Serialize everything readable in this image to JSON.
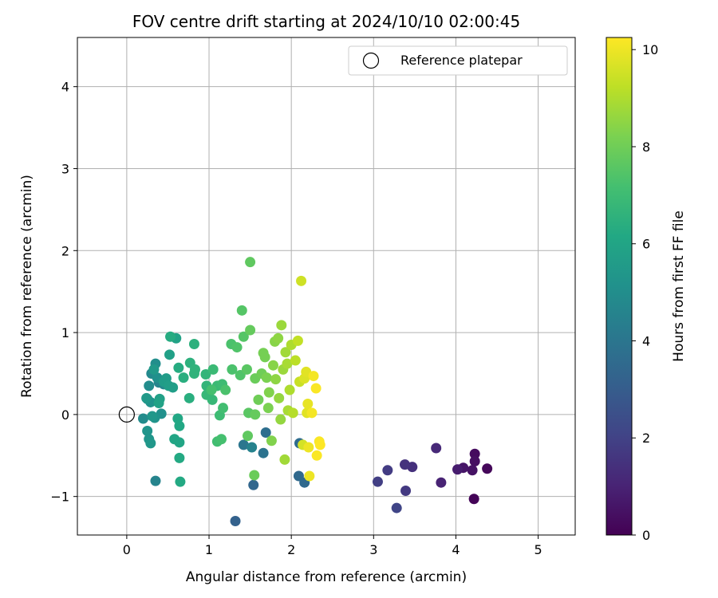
{
  "chart_data": {
    "type": "scatter",
    "title": "FOV centre drift starting at 2024/10/10 02:00:45",
    "xlabel": "Angular distance from reference (arcmin)",
    "ylabel": "Rotation from reference (arcmin)",
    "xlim": [
      -0.6,
      5.45
    ],
    "ylim": [
      -1.47,
      4.6
    ],
    "xticks": [
      0,
      1,
      2,
      3,
      4,
      5
    ],
    "yticks": [
      -1,
      0,
      1,
      2,
      3,
      4
    ],
    "grid": true,
    "legend": {
      "location": "top-right",
      "entries": [
        "Reference platepar"
      ]
    },
    "reference_point": {
      "x": 0.0,
      "y": 0.0,
      "marker": "open-circle",
      "label": "Reference platepar"
    },
    "colorbar": {
      "label": "Hours from first FF file",
      "range": [
        0,
        10.25
      ],
      "ticks": [
        0,
        2,
        4,
        6,
        8,
        10
      ],
      "colormap": "viridis"
    },
    "points": [
      {
        "x": 4.22,
        "y": -1.03,
        "c": 0.1
      },
      {
        "x": 4.38,
        "y": -0.66,
        "c": 0.2
      },
      {
        "x": 4.23,
        "y": -0.48,
        "c": 0.3
      },
      {
        "x": 4.23,
        "y": -0.57,
        "c": 0.4
      },
      {
        "x": 4.2,
        "y": -0.68,
        "c": 0.5
      },
      {
        "x": 4.09,
        "y": -0.65,
        "c": 0.6
      },
      {
        "x": 4.02,
        "y": -0.67,
        "c": 0.8
      },
      {
        "x": 3.82,
        "y": -0.83,
        "c": 1.0
      },
      {
        "x": 3.76,
        "y": -0.41,
        "c": 1.2
      },
      {
        "x": 3.47,
        "y": -0.64,
        "c": 1.4
      },
      {
        "x": 3.38,
        "y": -0.61,
        "c": 1.5
      },
      {
        "x": 3.39,
        "y": -0.93,
        "c": 1.7
      },
      {
        "x": 3.17,
        "y": -0.68,
        "c": 1.8
      },
      {
        "x": 3.05,
        "y": -0.82,
        "c": 1.9
      },
      {
        "x": 3.28,
        "y": -1.14,
        "c": 2.1
      },
      {
        "x": 1.32,
        "y": -1.3,
        "c": 3.2
      },
      {
        "x": 1.54,
        "y": -0.86,
        "c": 3.4
      },
      {
        "x": 2.09,
        "y": -0.75,
        "c": 3.5
      },
      {
        "x": 2.16,
        "y": -0.83,
        "c": 3.5
      },
      {
        "x": 2.1,
        "y": -0.35,
        "c": 3.6
      },
      {
        "x": 1.69,
        "y": -0.22,
        "c": 3.7
      },
      {
        "x": 1.66,
        "y": -0.47,
        "c": 3.9
      },
      {
        "x": 1.42,
        "y": -0.37,
        "c": 4.0
      },
      {
        "x": 1.52,
        "y": -0.4,
        "c": 4.5
      },
      {
        "x": 0.35,
        "y": -0.81,
        "c": 4.6
      },
      {
        "x": 0.39,
        "y": 0.39,
        "c": 4.6
      },
      {
        "x": 0.45,
        "y": 0.37,
        "c": 4.7
      },
      {
        "x": 0.3,
        "y": 0.5,
        "c": 4.8
      },
      {
        "x": 0.27,
        "y": 0.35,
        "c": 4.9
      },
      {
        "x": 0.2,
        "y": -0.05,
        "c": 4.9
      },
      {
        "x": 0.25,
        "y": 0.19,
        "c": 5.0
      },
      {
        "x": 0.35,
        "y": 0.62,
        "c": 5.0
      },
      {
        "x": 0.37,
        "y": 0.45,
        "c": 5.1
      },
      {
        "x": 0.42,
        "y": 0.01,
        "c": 5.1
      },
      {
        "x": 0.34,
        "y": -0.04,
        "c": 5.2
      },
      {
        "x": 0.29,
        "y": 0.15,
        "c": 5.2
      },
      {
        "x": 0.25,
        "y": -0.2,
        "c": 5.3
      },
      {
        "x": 0.27,
        "y": -0.3,
        "c": 5.3
      },
      {
        "x": 0.29,
        "y": -0.35,
        "c": 5.4
      },
      {
        "x": 0.31,
        "y": -0.02,
        "c": 5.4
      },
      {
        "x": 0.24,
        "y": 0.2,
        "c": 5.5
      },
      {
        "x": 0.33,
        "y": 0.55,
        "c": 5.5
      },
      {
        "x": 0.45,
        "y": 0.4,
        "c": 5.6
      },
      {
        "x": 0.48,
        "y": 0.44,
        "c": 5.6
      },
      {
        "x": 0.51,
        "y": 0.35,
        "c": 5.7
      },
      {
        "x": 0.56,
        "y": 0.33,
        "c": 5.7
      },
      {
        "x": 0.52,
        "y": 0.73,
        "c": 5.8
      },
      {
        "x": 0.4,
        "y": 0.19,
        "c": 5.8
      },
      {
        "x": 0.39,
        "y": 0.14,
        "c": 5.9
      },
      {
        "x": 0.6,
        "y": 0.93,
        "c": 5.9
      },
      {
        "x": 0.58,
        "y": -0.3,
        "c": 6.0
      },
      {
        "x": 0.64,
        "y": -0.34,
        "c": 6.0
      },
      {
        "x": 0.62,
        "y": -0.05,
        "c": 6.1
      },
      {
        "x": 0.64,
        "y": -0.14,
        "c": 6.1
      },
      {
        "x": 0.64,
        "y": -0.53,
        "c": 6.2
      },
      {
        "x": 0.65,
        "y": -0.82,
        "c": 6.2
      },
      {
        "x": 0.53,
        "y": 0.95,
        "c": 6.3
      },
      {
        "x": 0.63,
        "y": 0.57,
        "c": 6.3
      },
      {
        "x": 0.69,
        "y": 0.45,
        "c": 6.4
      },
      {
        "x": 0.76,
        "y": 0.2,
        "c": 6.4
      },
      {
        "x": 0.77,
        "y": 0.63,
        "c": 6.5
      },
      {
        "x": 0.82,
        "y": 0.86,
        "c": 6.5
      },
      {
        "x": 0.83,
        "y": 0.55,
        "c": 6.6
      },
      {
        "x": 0.82,
        "y": 0.5,
        "c": 6.6
      },
      {
        "x": 0.96,
        "y": 0.49,
        "c": 6.7
      },
      {
        "x": 0.97,
        "y": 0.35,
        "c": 6.7
      },
      {
        "x": 0.97,
        "y": 0.24,
        "c": 6.8
      },
      {
        "x": 1.04,
        "y": 0.18,
        "c": 6.8
      },
      {
        "x": 1.05,
        "y": 0.55,
        "c": 6.9
      },
      {
        "x": 1.1,
        "y": 0.35,
        "c": 6.9
      },
      {
        "x": 1.16,
        "y": 0.37,
        "c": 7.0
      },
      {
        "x": 1.13,
        "y": -0.01,
        "c": 7.0
      },
      {
        "x": 1.17,
        "y": 0.08,
        "c": 7.1
      },
      {
        "x": 1.1,
        "y": -0.33,
        "c": 7.1
      },
      {
        "x": 1.15,
        "y": -0.3,
        "c": 7.2
      },
      {
        "x": 1.03,
        "y": 0.3,
        "c": 7.2
      },
      {
        "x": 1.2,
        "y": 0.3,
        "c": 7.3
      },
      {
        "x": 1.28,
        "y": 0.55,
        "c": 7.3
      },
      {
        "x": 1.27,
        "y": 0.86,
        "c": 7.3
      },
      {
        "x": 1.34,
        "y": 0.82,
        "c": 7.4
      },
      {
        "x": 1.38,
        "y": 0.48,
        "c": 7.4
      },
      {
        "x": 1.4,
        "y": 1.27,
        "c": 7.5
      },
      {
        "x": 1.42,
        "y": 0.95,
        "c": 7.5
      },
      {
        "x": 1.46,
        "y": 0.55,
        "c": 7.6
      },
      {
        "x": 1.48,
        "y": 0.02,
        "c": 7.6
      },
      {
        "x": 1.47,
        "y": -0.26,
        "c": 7.7
      },
      {
        "x": 1.5,
        "y": 1.86,
        "c": 7.7
      },
      {
        "x": 1.5,
        "y": 1.03,
        "c": 7.8
      },
      {
        "x": 1.56,
        "y": 0.0,
        "c": 7.8
      },
      {
        "x": 1.55,
        "y": -0.74,
        "c": 7.9
      },
      {
        "x": 1.56,
        "y": 0.44,
        "c": 7.9
      },
      {
        "x": 1.6,
        "y": 0.18,
        "c": 8.0
      },
      {
        "x": 1.64,
        "y": 0.5,
        "c": 8.0
      },
      {
        "x": 1.66,
        "y": 0.75,
        "c": 8.1
      },
      {
        "x": 1.68,
        "y": 0.7,
        "c": 8.1
      },
      {
        "x": 1.7,
        "y": 0.45,
        "c": 8.2
      },
      {
        "x": 1.72,
        "y": 0.08,
        "c": 8.2
      },
      {
        "x": 1.73,
        "y": 0.27,
        "c": 8.3
      },
      {
        "x": 1.76,
        "y": -0.32,
        "c": 8.3
      },
      {
        "x": 1.78,
        "y": 0.6,
        "c": 8.4
      },
      {
        "x": 1.8,
        "y": 0.89,
        "c": 8.4
      },
      {
        "x": 1.81,
        "y": 0.43,
        "c": 8.5
      },
      {
        "x": 1.84,
        "y": 0.93,
        "c": 8.5
      },
      {
        "x": 1.85,
        "y": 0.2,
        "c": 8.6
      },
      {
        "x": 1.87,
        "y": -0.06,
        "c": 8.6
      },
      {
        "x": 1.88,
        "y": 1.09,
        "c": 8.7
      },
      {
        "x": 1.9,
        "y": 0.55,
        "c": 8.7
      },
      {
        "x": 1.92,
        "y": -0.55,
        "c": 8.8
      },
      {
        "x": 1.93,
        "y": 0.76,
        "c": 8.8
      },
      {
        "x": 1.95,
        "y": 0.62,
        "c": 8.9
      },
      {
        "x": 1.96,
        "y": 0.05,
        "c": 8.9
      },
      {
        "x": 1.98,
        "y": 0.3,
        "c": 9.0
      },
      {
        "x": 2.0,
        "y": 0.85,
        "c": 9.0
      },
      {
        "x": 2.02,
        "y": 0.02,
        "c": 9.1
      },
      {
        "x": 2.05,
        "y": 0.66,
        "c": 9.2
      },
      {
        "x": 2.08,
        "y": 0.9,
        "c": 9.3
      },
      {
        "x": 2.1,
        "y": 0.4,
        "c": 9.4
      },
      {
        "x": 2.12,
        "y": 1.63,
        "c": 9.5
      },
      {
        "x": 2.14,
        "y": -0.37,
        "c": 9.6
      },
      {
        "x": 2.16,
        "y": 0.44,
        "c": 9.7
      },
      {
        "x": 2.18,
        "y": 0.52,
        "c": 9.8
      },
      {
        "x": 2.19,
        "y": 0.02,
        "c": 9.8
      },
      {
        "x": 2.2,
        "y": 0.13,
        "c": 9.9
      },
      {
        "x": 2.21,
        "y": -0.4,
        "c": 10.0
      },
      {
        "x": 2.22,
        "y": -0.75,
        "c": 10.0
      },
      {
        "x": 2.25,
        "y": 0.02,
        "c": 10.1
      },
      {
        "x": 2.27,
        "y": 0.47,
        "c": 10.1
      },
      {
        "x": 2.3,
        "y": 0.32,
        "c": 10.2
      },
      {
        "x": 2.31,
        "y": -0.5,
        "c": 10.2
      },
      {
        "x": 2.34,
        "y": -0.33,
        "c": 10.2
      },
      {
        "x": 2.35,
        "y": -0.37,
        "c": 10.25
      }
    ]
  }
}
